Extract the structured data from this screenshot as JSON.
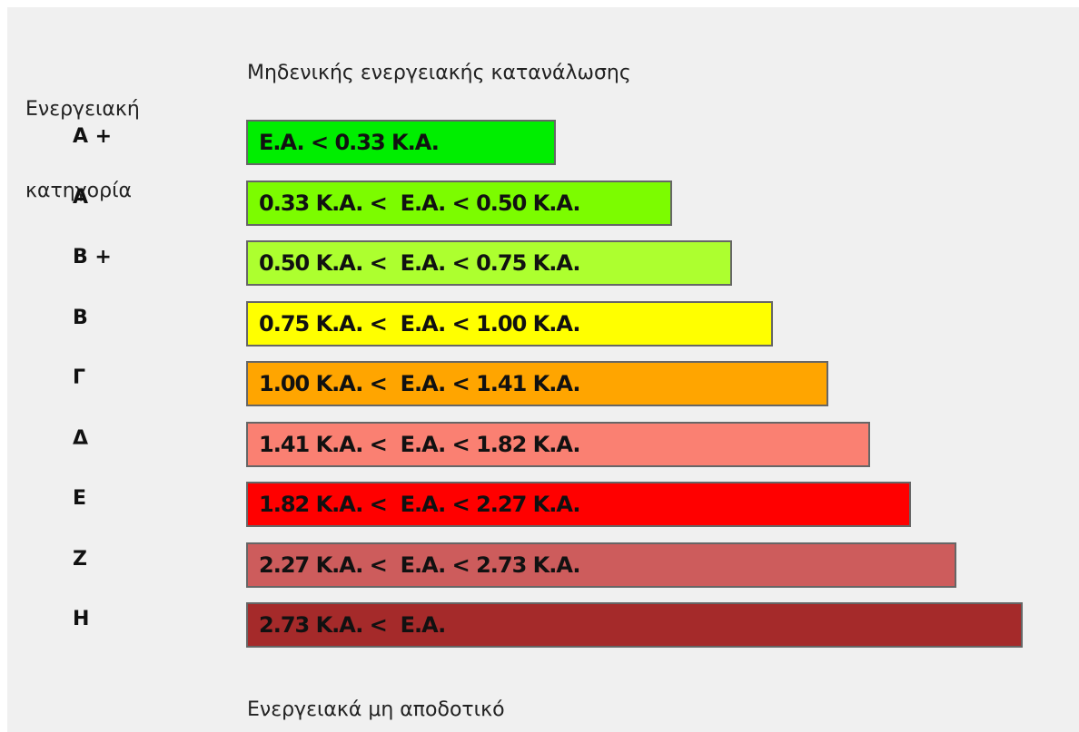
{
  "header": {
    "category_title": [
      "Ενεργειακή",
      "κατηγορία"
    ],
    "top_label": "Μηδενικής ενεργειακής κατανάλωσης",
    "bottom_label": "Ενεργειακά μη αποδοτικό"
  },
  "rows": [
    {
      "category": "A +",
      "range": "E.A. < 0.33 K.A.",
      "color": "#00ee00"
    },
    {
      "category": "A",
      "range": "0.33 K.A. <  E.A. < 0.50 K.A.",
      "color": "#7cfc00"
    },
    {
      "category": "B +",
      "range": "0.50 K.A. <  E.A. < 0.75 K.A.",
      "color": "#adff2f"
    },
    {
      "category": "B",
      "range": "0.75 K.A. <  E.A. < 1.00 K.A.",
      "color": "#ffff00"
    },
    {
      "category": "Γ",
      "range": "1.00 K.A. <  E.A. < 1.41 K.A.",
      "color": "#ffa500"
    },
    {
      "category": "Δ",
      "range": "1.41 K.A. <  E.A. < 1.82 K.A.",
      "color": "#fa8072"
    },
    {
      "category": "E",
      "range": "1.82 K.A. <  E.A. < 2.27 K.A.",
      "color": "#ff0000"
    },
    {
      "category": "Z",
      "range": "2.27 K.A. <  E.A. < 2.73 K.A.",
      "color": "#cd5c5c"
    },
    {
      "category": "H",
      "range": "2.73 K.A. <  E.A.",
      "color": "#a52a2a"
    }
  ]
}
